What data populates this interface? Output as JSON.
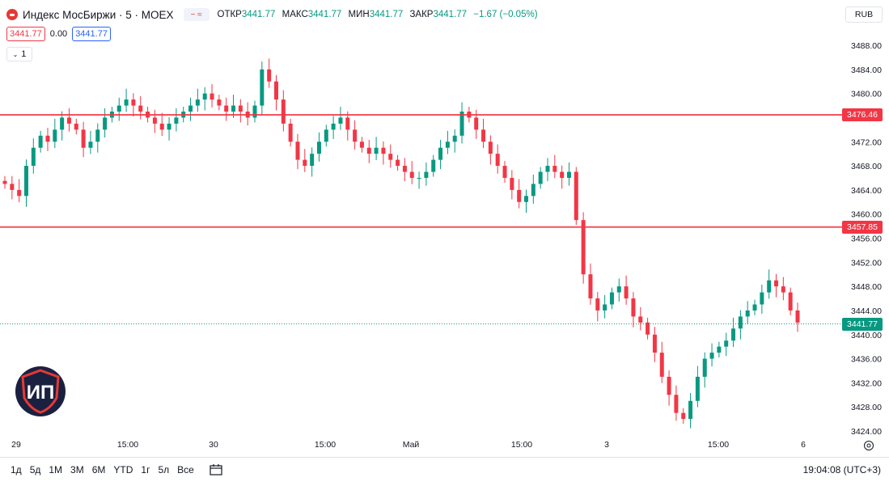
{
  "header": {
    "symbol": "Индекс МосБиржи · 5 · MOEX",
    "icon_compare": "≈",
    "ohlc": {
      "open_label": "ОТКР",
      "open": "3441.77",
      "high_label": "МАКС",
      "high": "3441.77",
      "low_label": "МИН",
      "low": "3441.77",
      "close_label": "ЗАКР",
      "close": "3441.77",
      "change": "−1.67 (−0.05%)"
    },
    "sell_price": "3441.77",
    "spread": "0.00",
    "buy_price": "3441.77",
    "interval_btn": "1"
  },
  "currency": "RUB",
  "colors": {
    "up": "#089981",
    "down": "#f23645",
    "level": "#f23645",
    "accent": "#2962ff"
  },
  "price_axis": {
    "ticks": [
      "3488.00",
      "3484.00",
      "3480.00",
      "3476.00",
      "3472.00",
      "3468.00",
      "3464.00",
      "3460.00",
      "3456.00",
      "3452.00",
      "3448.00",
      "3444.00",
      "3440.00",
      "3436.00",
      "3432.00",
      "3428.00",
      "3424.00"
    ],
    "level_1": "3476.46",
    "level_2": "3457.85",
    "last_price": "3441.77"
  },
  "time_axis": {
    "labels": [
      "29",
      "15:00",
      "30",
      "15:00",
      "Май",
      "15:00",
      "3",
      "15:00",
      "6"
    ]
  },
  "chart_data": {
    "type": "candlestick",
    "ylim": [
      3423,
      3491
    ],
    "horizontal_levels": [
      3476.46,
      3457.85
    ],
    "last_price": 3441.77,
    "closes": [
      3465,
      3464,
      3463,
      3468,
      3471,
      3473,
      3472,
      3474,
      3476,
      3475,
      3474,
      3471,
      3472,
      3474,
      3476,
      3477,
      3478,
      3479,
      3478,
      3477,
      3476,
      3475,
      3474,
      3475,
      3476,
      3477,
      3478,
      3479,
      3480,
      3479,
      3478,
      3477,
      3478,
      3477,
      3476,
      3478,
      3484,
      3482,
      3479,
      3475,
      3472,
      3469,
      3468,
      3470,
      3472,
      3474,
      3475,
      3476,
      3474,
      3472,
      3471,
      3470,
      3471,
      3470,
      3469,
      3468,
      3467,
      3466,
      3466,
      3467,
      3469,
      3471,
      3472,
      3473,
      3477,
      3476,
      3474,
      3472,
      3470,
      3468,
      3466,
      3464,
      3462,
      3463,
      3465,
      3467,
      3468,
      3467,
      3466,
      3467,
      3459,
      3450,
      3446,
      3444,
      3445,
      3447,
      3448,
      3446,
      3443,
      3442,
      3440,
      3437,
      3433,
      3430,
      3427,
      3426,
      3429,
      3433,
      3436,
      3437,
      3438,
      3439,
      3441,
      3443,
      3444,
      3445,
      3447,
      3449,
      3448,
      3447,
      3444,
      3442
    ],
    "x_labels": [
      "29",
      "15:00",
      "30",
      "15:00",
      "Май",
      "15:00",
      "3",
      "15:00",
      "6"
    ]
  },
  "bottom_bar": {
    "timeframes": [
      "1д",
      "5д",
      "1М",
      "3М",
      "6М",
      "YTD",
      "1г",
      "5л",
      "Все"
    ],
    "clock": "19:04:08 (UTC+3)"
  },
  "watermark": "ИП"
}
